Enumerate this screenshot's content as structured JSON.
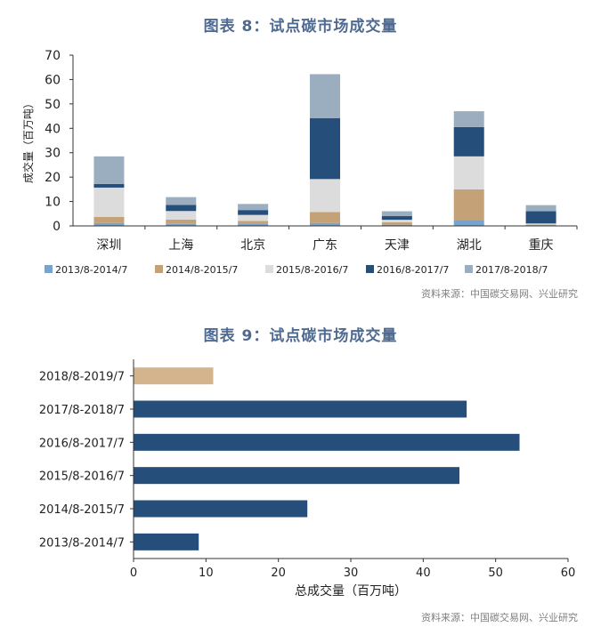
{
  "chart1": {
    "title": "图表 8：试点碳市场成交量",
    "source": "资料来源：中国碳交易网、兴业研究",
    "chart_data": {
      "type": "bar",
      "stacked": true,
      "categories": [
        "深圳",
        "上海",
        "北京",
        "广东",
        "天津",
        "湖北",
        "重庆"
      ],
      "ylabel": "成交量（百万吨）",
      "ylim": [
        0,
        70
      ],
      "yticks": [
        0,
        10,
        20,
        30,
        40,
        50,
        60,
        70
      ],
      "legend_position": "bottom",
      "series": [
        {
          "name": "2013/8-2014/7",
          "color": "#7aa3c9",
          "values": [
            1.2,
            0.8,
            1.0,
            1.2,
            0.5,
            2.5,
            0.2
          ]
        },
        {
          "name": "2014/8-2015/7",
          "color": "#c5a177",
          "values": [
            2.5,
            1.8,
            1.0,
            4.5,
            1.0,
            12.5,
            0.3
          ]
        },
        {
          "name": "2015/8-2016/7",
          "color": "#dcdcdc",
          "values": [
            12.0,
            3.5,
            2.5,
            13.5,
            1.0,
            13.5,
            0.5
          ]
        },
        {
          "name": "2016/8-2017/7",
          "color": "#254e7b",
          "values": [
            1.5,
            2.5,
            2.0,
            25.0,
            1.5,
            12.0,
            5.0
          ]
        },
        {
          "name": "2017/8-2018/7",
          "color": "#9aaebf",
          "values": [
            11.3,
            3.2,
            2.5,
            18.0,
            2.0,
            6.5,
            2.5
          ]
        }
      ]
    }
  },
  "chart2": {
    "title": "图表 9：试点碳市场成交量",
    "source": "资料来源：中国碳交易网、兴业研究",
    "chart_data": {
      "type": "bar",
      "orientation": "horizontal",
      "categories": [
        "2018/8-2019/7",
        "2017/8-2018/7",
        "2016/8-2017/7",
        "2015/8-2016/7",
        "2014/8-2015/7",
        "2013/8-2014/7"
      ],
      "values": [
        11,
        46,
        53.3,
        45,
        24,
        9
      ],
      "colors": [
        "#d4b48c",
        "#254e7b",
        "#254e7b",
        "#254e7b",
        "#254e7b",
        "#254e7b"
      ],
      "xlabel": "总成交量（百万吨）",
      "xlim": [
        0,
        60
      ],
      "xticks": [
        0,
        10,
        20,
        30,
        40,
        50,
        60
      ]
    }
  }
}
